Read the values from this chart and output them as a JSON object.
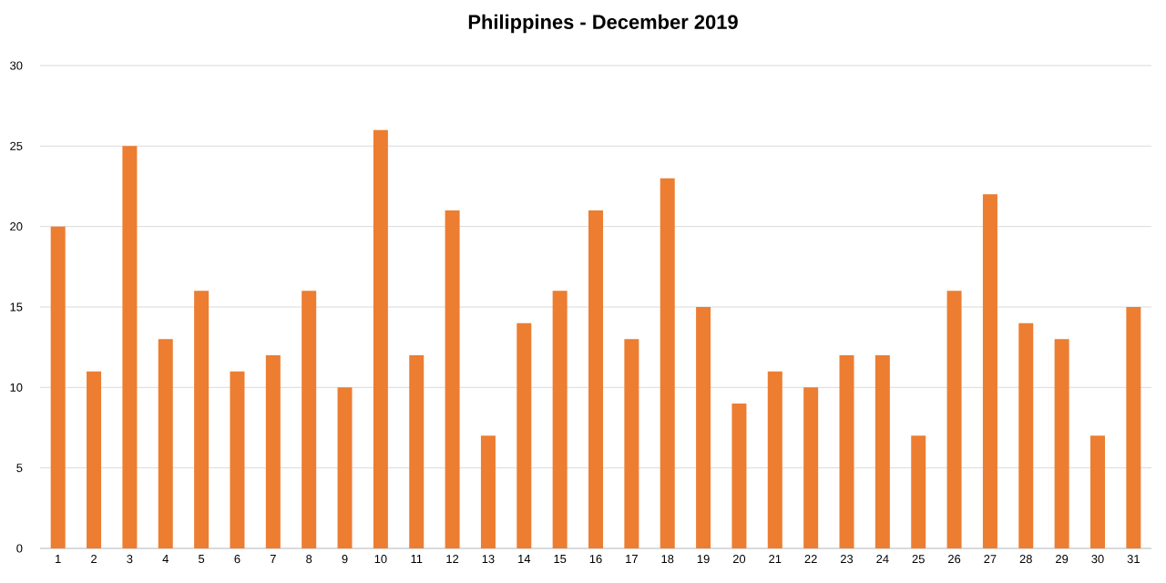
{
  "chart_data": {
    "type": "bar",
    "title": "Philippines - December 2019",
    "categories": [
      "1",
      "2",
      "3",
      "4",
      "5",
      "6",
      "7",
      "8",
      "9",
      "10",
      "11",
      "12",
      "13",
      "14",
      "15",
      "16",
      "17",
      "18",
      "19",
      "20",
      "21",
      "22",
      "23",
      "24",
      "25",
      "26",
      "27",
      "28",
      "29",
      "30",
      "31"
    ],
    "values": [
      20,
      11,
      25,
      13,
      16,
      11,
      12,
      16,
      10,
      26,
      12,
      21,
      7,
      14,
      16,
      21,
      13,
      23,
      15,
      9,
      11,
      10,
      12,
      12,
      7,
      16,
      22,
      14,
      13,
      7,
      15
    ],
    "color": "#ed7d31",
    "ylim": [
      0,
      30
    ],
    "yticks": [
      0,
      5,
      10,
      15,
      20,
      25,
      30
    ],
    "grid": "y"
  }
}
